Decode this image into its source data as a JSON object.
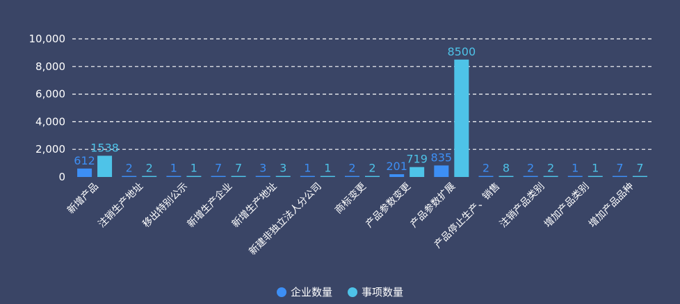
{
  "chart_data": {
    "type": "bar",
    "title": "",
    "xlabel": "",
    "ylabel": "",
    "ylim": [
      0,
      10000
    ],
    "yticks": [
      "0",
      "2,000",
      "4,000",
      "6,000",
      "8,000",
      "10,000"
    ],
    "grid": true,
    "legend_position": "bottom-center",
    "categories": [
      "新增产品",
      "注销生产地址",
      "移出特别公示",
      "新增生产企业",
      "新增生产地址",
      "新建非独立法人分公司",
      "商标变更",
      "产品参数变更",
      "产品参数扩展",
      "产品停止生产、销售",
      "注销产品类别",
      "增加产品类别",
      "增加产品品种"
    ],
    "series": [
      {
        "name": "企业数量",
        "color": "#3d8ff5",
        "values": [
          612,
          2,
          1,
          7,
          3,
          1,
          2,
          201,
          835,
          2,
          2,
          1,
          7
        ]
      },
      {
        "name": "事项数量",
        "color": "#4ec3e8",
        "values": [
          1538,
          2,
          1,
          7,
          3,
          1,
          2,
          719,
          8500,
          8,
          2,
          1,
          7
        ]
      }
    ]
  },
  "colors": {
    "background": "#3a4566",
    "text": "#ffffff",
    "grid": "#ffffff"
  }
}
